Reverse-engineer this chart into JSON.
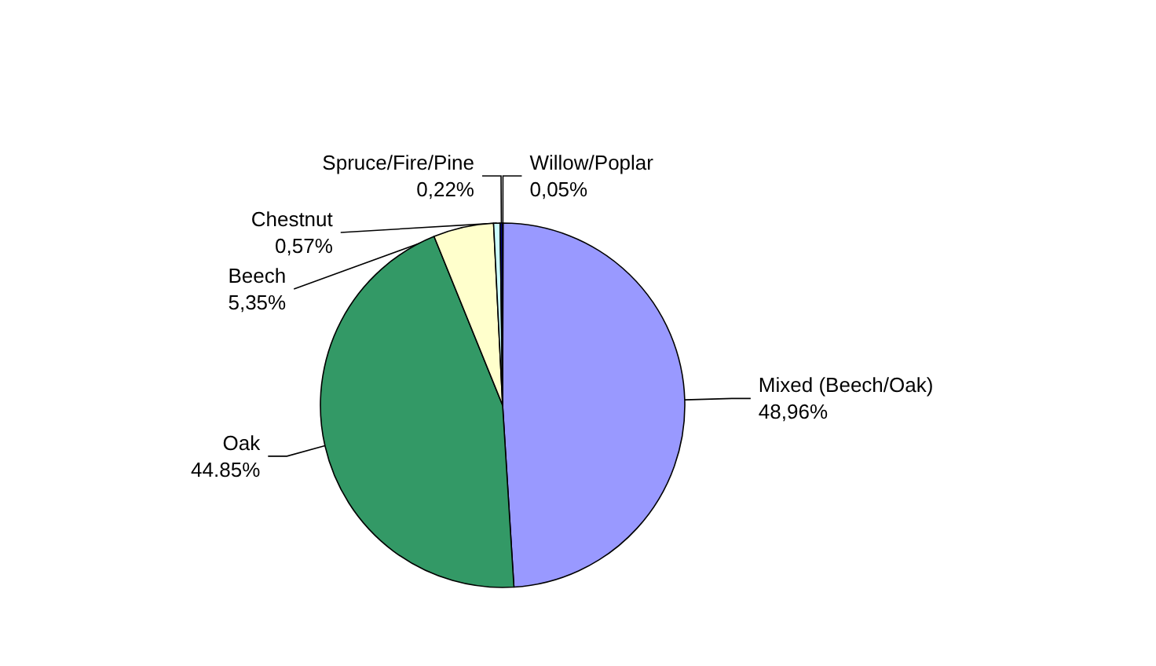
{
  "chart_data": {
    "type": "pie",
    "categories": [
      "Willow/Poplar",
      "Mixed (Beech/Oak)",
      "Oak",
      "Beech",
      "Chestnut",
      "Spruce/Fire/Pine"
    ],
    "values": [
      0.05,
      48.96,
      44.85,
      5.35,
      0.57,
      0.22
    ],
    "value_labels": [
      "0,05%",
      "48,96%",
      "44.85%",
      "5,35%",
      "0,57%",
      "0,22%"
    ],
    "colors": [
      "#0066cc",
      "#9999ff",
      "#339966",
      "#ffffcc",
      "#ccffff",
      "#000080"
    ],
    "legend": false
  }
}
